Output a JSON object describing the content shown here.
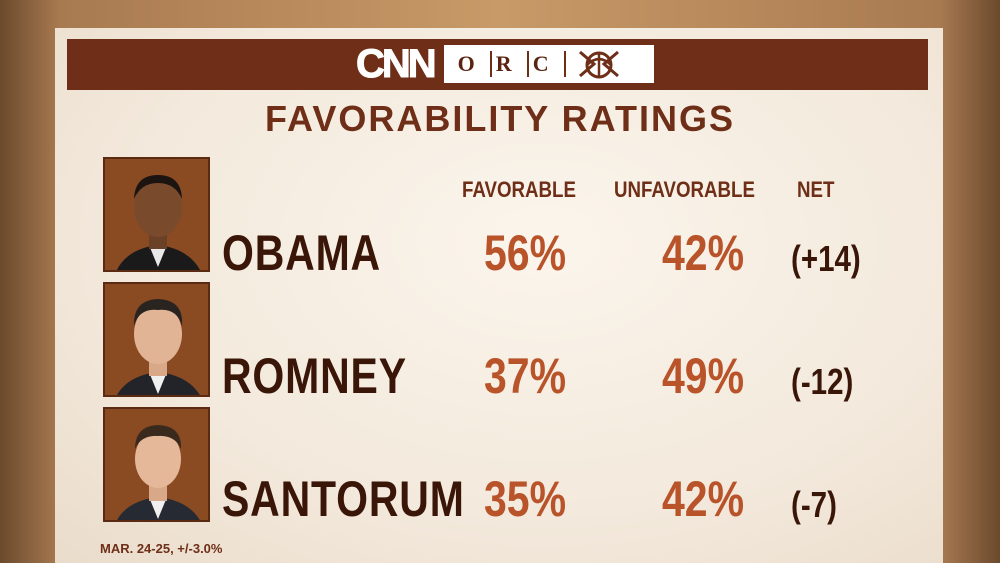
{
  "header": {
    "cnn_logo_text": "CNN",
    "orc_letters": [
      "O",
      "R",
      "C"
    ]
  },
  "colors": {
    "header_bar": "#6e2e17",
    "percent_text": "#b8532a",
    "name_text": "#3a1608",
    "panel_bg": "#f6eee3"
  },
  "chart_data": {
    "type": "table",
    "title": "FAVORABILITY RATINGS",
    "columns": [
      "FAVORABLE",
      "UNFAVORABLE",
      "NET"
    ],
    "rows": [
      {
        "name": "OBAMA",
        "favorable": "56%",
        "unfavorable": "42%",
        "net": "(+14)",
        "favorable_value": 56,
        "unfavorable_value": 42,
        "net_value": 14
      },
      {
        "name": "ROMNEY",
        "favorable": "37%",
        "unfavorable": "49%",
        "net": "(-12)",
        "favorable_value": 37,
        "unfavorable_value": 49,
        "net_value": -12
      },
      {
        "name": "SANTORUM",
        "favorable": "35%",
        "unfavorable": "42%",
        "net": "(-7)",
        "favorable_value": 35,
        "unfavorable_value": 42,
        "net_value": -7
      }
    ],
    "footnote": "MAR. 24-25, +/-3.0%"
  }
}
